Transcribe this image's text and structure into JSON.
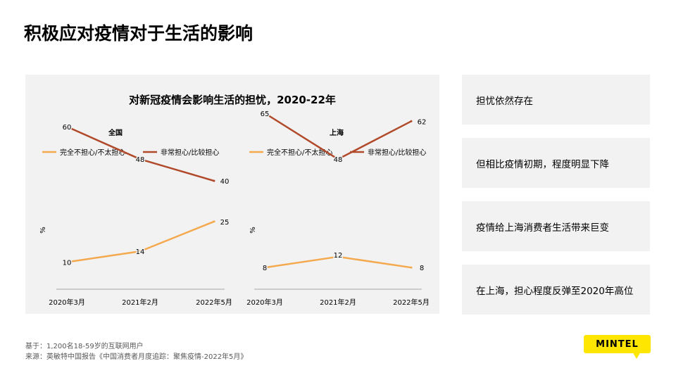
{
  "page": {
    "title": "积极应对疫情对于生活的影响"
  },
  "chart_panel": {
    "title": "对新冠疫情会影响生活的担忧，2020-22年"
  },
  "chart_data": [
    {
      "type": "line",
      "title": "全国",
      "ylabel": "%",
      "categories": [
        "2020年3月",
        "2021年2月",
        "2022年5月"
      ],
      "series": [
        {
          "name": "完全不担心/不太担心",
          "values": [
            10,
            14,
            25
          ],
          "color": "#f4a94e"
        },
        {
          "name": "非常担心/比较担心",
          "values": [
            60,
            48,
            40
          ],
          "color": "#b14a2a"
        }
      ],
      "ylim": [
        0,
        70
      ],
      "grid": false,
      "legend": "top"
    },
    {
      "type": "line",
      "title": "上海",
      "ylabel": "%",
      "categories": [
        "2020年3月",
        "2021年2月",
        "2022年5月"
      ],
      "series": [
        {
          "name": "完全不担心/不太担心",
          "values": [
            8,
            12,
            8
          ],
          "color": "#f4a94e"
        },
        {
          "name": "非常担心/比较担心",
          "values": [
            65,
            48,
            62
          ],
          "color": "#b14a2a"
        }
      ],
      "ylim": [
        0,
        70
      ],
      "grid": false,
      "legend": "top"
    }
  ],
  "insights": [
    {
      "text": "担忧依然存在"
    },
    {
      "text": "但相比疫情初期，程度明显下降"
    },
    {
      "text": "疫情给上海消费者生活带来巨变"
    },
    {
      "text": "在上海，担心程度反弹至2020年高位"
    }
  ],
  "footnotes": {
    "base": "基于：1,200名18-59岁的互联网用户",
    "source": "来源：英敏特中国报告《中国消费者月度追踪：聚焦疫情-2022年5月》"
  },
  "logo": {
    "text": "MINTEL",
    "color": "#ffe600"
  }
}
